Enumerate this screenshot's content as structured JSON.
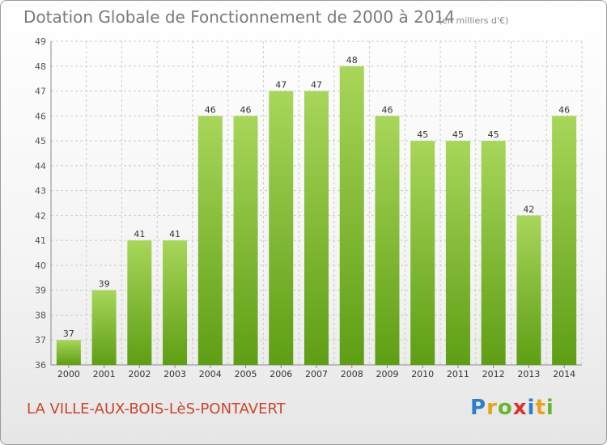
{
  "header": {
    "title": "Dotation Globale de Fonctionnement de 2000 à 2014",
    "units": "(en milliers d'€)"
  },
  "footer": {
    "commune": "LA VILLE-AUX-BOIS-LèS-PONTAVERT",
    "logo": "Proxiti"
  },
  "colors": {
    "bar_top": "#a8d65a",
    "bar_bottom": "#5e9e14",
    "grid": "#cccccc",
    "title": "#7a7a7a",
    "commune": "#c8472e"
  },
  "chart_data": {
    "type": "bar",
    "title": "Dotation Globale de Fonctionnement de 2000 à 2014",
    "subtitle": "(en milliers d'€)",
    "xlabel": "",
    "ylabel": "",
    "categories": [
      "2000",
      "2001",
      "2002",
      "2003",
      "2004",
      "2005",
      "2006",
      "2007",
      "2008",
      "2009",
      "2010",
      "2011",
      "2012",
      "2013",
      "2014"
    ],
    "values": [
      37,
      39,
      41,
      41,
      46,
      46,
      47,
      47,
      48,
      46,
      45,
      45,
      45,
      42,
      46
    ],
    "ylim": [
      36,
      49
    ],
    "yticks": [
      36,
      37,
      38,
      39,
      40,
      41,
      42,
      43,
      44,
      45,
      46,
      47,
      48,
      49
    ],
    "grid": true,
    "legend": "none"
  }
}
